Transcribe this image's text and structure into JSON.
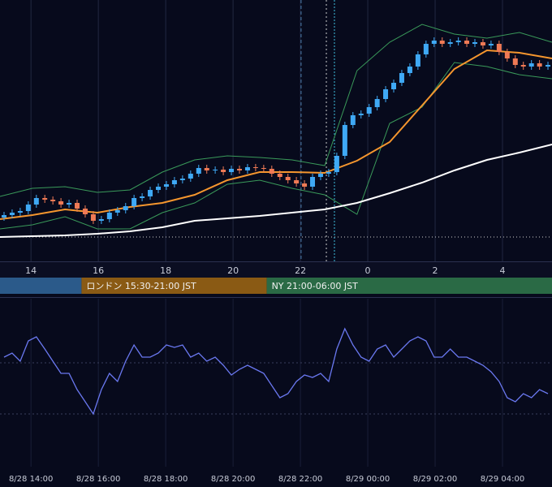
{
  "chart_data": [
    {
      "type": "candlestick",
      "xlim": [
        13.08,
        29.47
      ],
      "ylim": [
        0,
        322
      ],
      "xticks": [
        14,
        16,
        18,
        20,
        22,
        {
          "value": 24,
          "label": "0"
        },
        {
          "value": 26,
          "label": "2"
        },
        {
          "value": 28,
          "label": "4"
        }
      ],
      "up_color": "#3fa9f5",
      "down_color": "#f07a55",
      "x": [
        13.2,
        13.44,
        13.68,
        13.92,
        14.16,
        14.41,
        14.65,
        14.89,
        15.13,
        15.37,
        15.61,
        15.85,
        16.09,
        16.33,
        16.57,
        16.81,
        17.06,
        17.3,
        17.54,
        17.78,
        18.02,
        18.26,
        18.5,
        18.74,
        18.98,
        19.22,
        19.47,
        19.71,
        19.95,
        20.19,
        20.43,
        20.67,
        20.91,
        21.15,
        21.39,
        21.63,
        21.88,
        22.12,
        22.36,
        22.6,
        22.84,
        23.08,
        23.32,
        23.56,
        23.8,
        24.04,
        24.28,
        24.53,
        24.77,
        25.01,
        25.25,
        25.49,
        25.73,
        25.97,
        26.21,
        26.45,
        26.69,
        26.94,
        27.18,
        27.42,
        27.66,
        27.9,
        28.14,
        28.38,
        28.62,
        28.86,
        29.1,
        29.35
      ],
      "open": [
        54,
        57,
        60,
        62,
        70,
        78,
        76,
        74,
        70,
        72,
        65,
        58,
        50,
        52,
        60,
        63,
        68,
        78,
        80,
        88,
        92,
        95,
        100,
        102,
        108,
        115,
        112,
        113,
        110,
        114,
        112,
        116,
        115,
        114,
        108,
        104,
        100,
        96,
        92,
        104,
        108,
        110,
        130,
        168,
        180,
        182,
        190,
        200,
        212,
        220,
        232,
        240,
        255,
        268,
        272,
        268,
        270,
        272,
        268,
        270,
        266,
        268,
        258,
        250,
        242,
        240,
        244,
        240
      ],
      "high": [
        61,
        64,
        66,
        74,
        82,
        82,
        80,
        78,
        76,
        76,
        69,
        62,
        56,
        64,
        67,
        72,
        82,
        84,
        92,
        96,
        99,
        104,
        106,
        112,
        119,
        119,
        117,
        117,
        118,
        118,
        120,
        120,
        119,
        118,
        112,
        108,
        104,
        100,
        108,
        112,
        114,
        134,
        172,
        184,
        186,
        194,
        204,
        216,
        224,
        236,
        244,
        259,
        272,
        276,
        276,
        274,
        276,
        276,
        274,
        274,
        272,
        272,
        262,
        254,
        246,
        248,
        248,
        246
      ],
      "low": [
        50,
        53,
        56,
        58,
        66,
        72,
        70,
        66,
        66,
        61,
        54,
        46,
        46,
        48,
        56,
        59,
        64,
        74,
        76,
        84,
        88,
        91,
        96,
        98,
        104,
        108,
        108,
        106,
        106,
        108,
        108,
        111,
        110,
        104,
        100,
        96,
        92,
        88,
        88,
        100,
        104,
        106,
        126,
        164,
        176,
        178,
        186,
        196,
        208,
        216,
        228,
        236,
        251,
        264,
        264,
        264,
        266,
        264,
        264,
        262,
        262,
        254,
        246,
        238,
        236,
        236,
        236,
        236
      ],
      "close": [
        57,
        60,
        62,
        70,
        78,
        76,
        74,
        70,
        72,
        65,
        58,
        50,
        52,
        60,
        63,
        68,
        78,
        80,
        88,
        92,
        95,
        100,
        102,
        108,
        115,
        112,
        113,
        110,
        114,
        112,
        116,
        115,
        114,
        108,
        104,
        100,
        96,
        92,
        104,
        108,
        110,
        130,
        168,
        180,
        182,
        190,
        200,
        212,
        220,
        232,
        240,
        255,
        268,
        272,
        268,
        270,
        272,
        268,
        270,
        266,
        268,
        258,
        250,
        242,
        240,
        244,
        240,
        242
      ],
      "line_x": [
        13.08,
        14.04,
        15.01,
        15.97,
        16.94,
        17.9,
        18.86,
        19.83,
        20.79,
        21.75,
        22.72,
        23.68,
        24.65,
        25.61,
        26.57,
        27.54,
        28.5,
        29.47
      ],
      "lines": [
        {
          "color": "#3a9a5a",
          "values": [
            80,
            90,
            92,
            85,
            88,
            110,
            125,
            130,
            128,
            125,
            118,
            235,
            270,
            292,
            280,
            275,
            282,
            270
          ]
        },
        {
          "color": "#3a9a5a",
          "values": [
            40,
            45,
            55,
            40,
            40,
            60,
            72,
            95,
            100,
            90,
            82,
            58,
            170,
            190,
            245,
            240,
            230,
            225
          ]
        },
        {
          "color": "#ffffff",
          "values": [
            30,
            31,
            32,
            34,
            37,
            42,
            50,
            53,
            56,
            60,
            64,
            72,
            84,
            97,
            112,
            125,
            134,
            144
          ]
        },
        {
          "color": "#f5962e",
          "values": [
            52,
            57,
            64,
            60,
            67,
            72,
            82,
            100,
            110,
            110,
            109,
            124,
            147,
            192,
            237,
            260,
            257,
            250
          ]
        }
      ],
      "hline": 30,
      "vlines": [
        22.02,
        22.77,
        23.01
      ],
      "sessions": [
        {
          "label": null,
          "start": 9,
          "end": 15.5,
          "color": "#2b5a8a"
        },
        {
          "label": "ロンドン 15:30-21:00 JST",
          "start": 15.5,
          "end": 21,
          "color": "#8a5a14"
        },
        {
          "label": "NY 21:00-06:00 JST",
          "start": 21,
          "end": 30,
          "color": "#2a6a45"
        }
      ]
    },
    {
      "type": "line",
      "color": "#6a78f0",
      "xlim": [
        13.08,
        29.47
      ],
      "ylim": [
        0,
        207
      ],
      "xticks": [
        {
          "value": 14,
          "label": "8/28 14:00"
        },
        {
          "value": 16,
          "label": "8/28 16:00"
        },
        {
          "value": 18,
          "label": "8/28 18:00"
        },
        {
          "value": 20,
          "label": "8/28 20:00"
        },
        {
          "value": 22,
          "label": "8/28 22:00"
        },
        {
          "value": 24,
          "label": "8/29 00:00"
        },
        {
          "value": 26,
          "label": "8/29 02:00"
        },
        {
          "value": 28,
          "label": "8/29 04:00"
        }
      ],
      "levels": [
        128,
        65
      ],
      "x": [
        13.2,
        13.44,
        13.68,
        13.92,
        14.16,
        14.41,
        14.65,
        14.89,
        15.13,
        15.37,
        15.61,
        15.85,
        16.09,
        16.33,
        16.57,
        16.81,
        17.06,
        17.3,
        17.54,
        17.78,
        18.02,
        18.26,
        18.5,
        18.74,
        18.98,
        19.22,
        19.47,
        19.71,
        19.95,
        20.19,
        20.43,
        20.67,
        20.91,
        21.15,
        21.39,
        21.63,
        21.88,
        22.12,
        22.36,
        22.6,
        22.84,
        23.08,
        23.32,
        23.56,
        23.8,
        24.04,
        24.28,
        24.53,
        24.77,
        25.01,
        25.25,
        25.49,
        25.73,
        25.97,
        26.21,
        26.45,
        26.69,
        26.94,
        27.18,
        27.42,
        27.66,
        27.9,
        28.14,
        28.38,
        28.62,
        28.86,
        29.1,
        29.35
      ],
      "values": [
        135,
        140,
        130,
        155,
        160,
        145,
        130,
        115,
        115,
        95,
        80,
        65,
        95,
        115,
        105,
        130,
        150,
        135,
        135,
        140,
        150,
        147,
        150,
        135,
        140,
        130,
        135,
        125,
        113,
        120,
        125,
        120,
        115,
        100,
        85,
        90,
        105,
        113,
        110,
        115,
        105,
        145,
        170,
        150,
        135,
        130,
        145,
        150,
        135,
        145,
        155,
        160,
        155,
        135,
        135,
        145,
        135,
        135,
        130,
        125,
        117,
        105,
        85,
        80,
        90,
        85,
        95,
        90
      ]
    }
  ]
}
